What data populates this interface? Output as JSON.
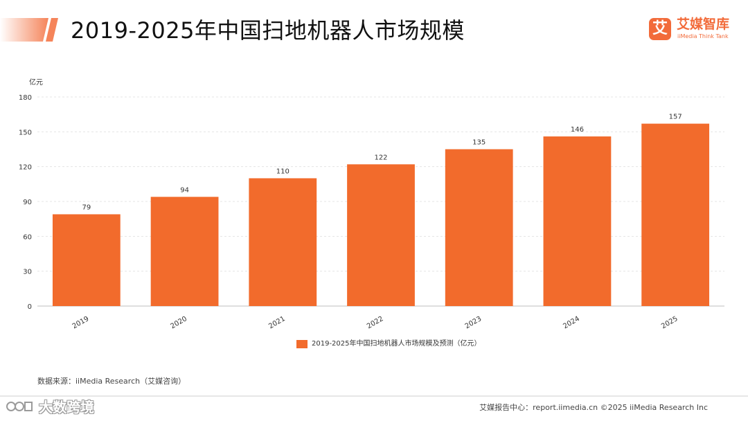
{
  "header": {
    "title": "2019-2025年中国扫地机器人市场规模"
  },
  "brand": {
    "mark": "艾",
    "name": "艾媒智库",
    "subtitle": "iiMedia Think Tank",
    "color": "#f26b3a"
  },
  "chart_data": {
    "type": "bar",
    "categories": [
      "2019",
      "2020",
      "2021",
      "2022",
      "2023",
      "2024",
      "2025"
    ],
    "series": [
      {
        "name": "2019-2025年中国扫地机器人市场规模及预测（亿元）",
        "values": [
          79,
          94,
          110,
          122,
          135,
          146,
          157
        ]
      }
    ],
    "ylabel": "亿元",
    "ylim": [
      0,
      180
    ],
    "yticks": [
      0,
      30,
      60,
      90,
      120,
      150,
      180
    ],
    "grid": true,
    "data_labels": true,
    "legend_position": "bottom",
    "bar_color": "#f26b2c"
  },
  "footer": {
    "source": "数据来源：iiMedia Research（艾媒咨询）",
    "right_text": "艾媒报告中心：report.iimedia.cn  ©2025 iiMedia Research Inc",
    "watermark": "大数跨境"
  }
}
